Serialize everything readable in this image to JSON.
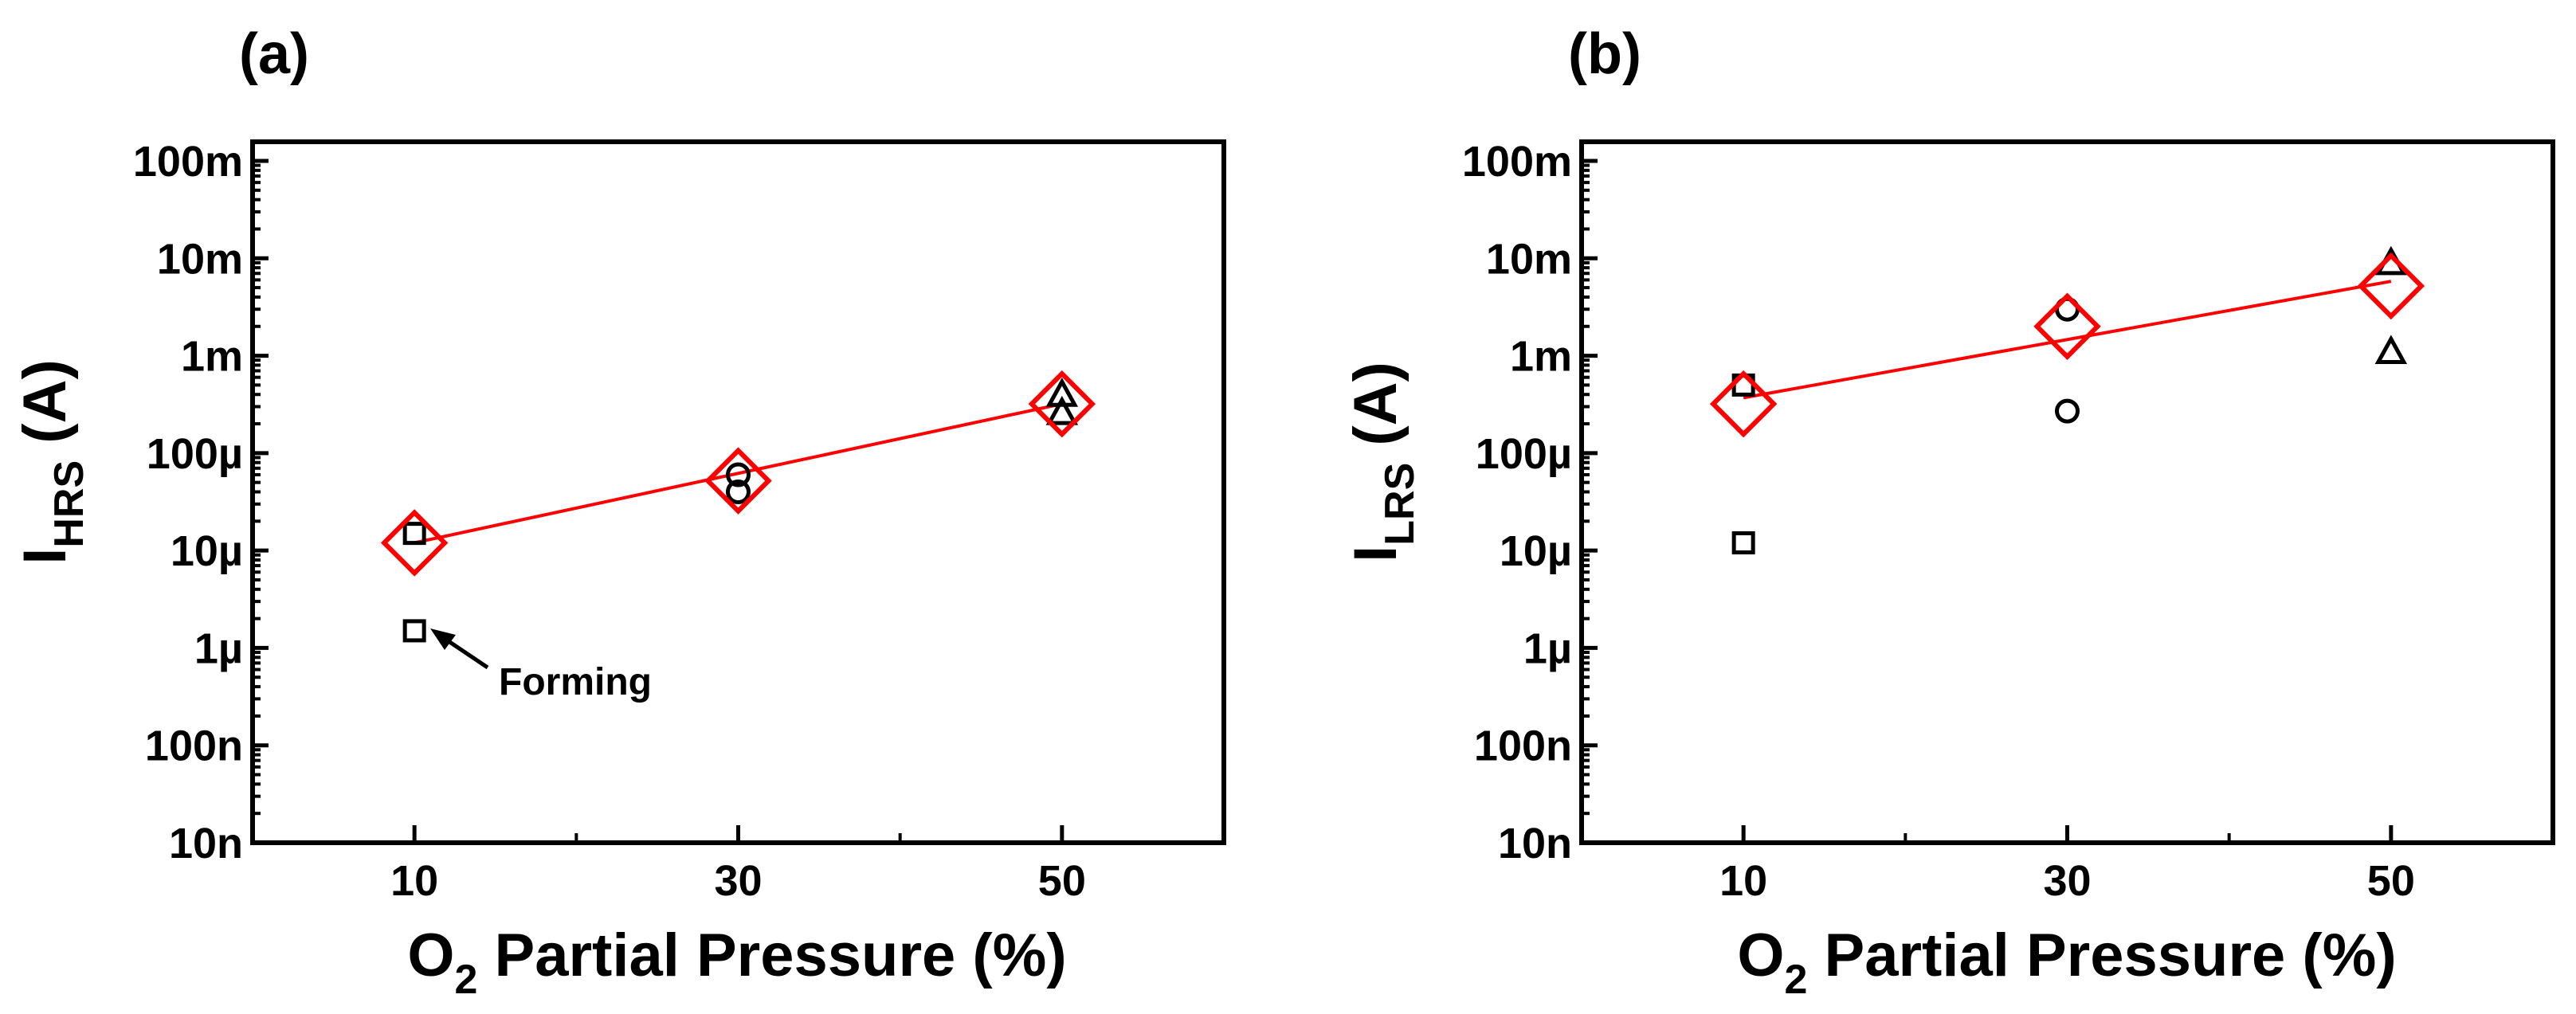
{
  "chart_data": [
    {
      "type": "scatter",
      "panel_label": "(a)",
      "xlabel": {
        "main": "O",
        "sub": "2",
        "rest": " Partial Pressure (%)"
      },
      "ylabel": {
        "main": "I",
        "sub": "HRS",
        "rest": " (A)"
      },
      "x_ticks": [
        10,
        30,
        50
      ],
      "x_range": [
        0,
        60
      ],
      "y_scale": "log",
      "y_range": [
        1e-08,
        0.1
      ],
      "y_ticks": [
        {
          "value": 0.1,
          "label": "100m"
        },
        {
          "value": 0.01,
          "label": "10m"
        },
        {
          "value": 0.001,
          "label": "1m"
        },
        {
          "value": 0.0001,
          "label": "100µ"
        },
        {
          "value": 1e-05,
          "label": "10µ"
        },
        {
          "value": 1e-06,
          "label": "1µ"
        },
        {
          "value": 1e-07,
          "label": "100n"
        },
        {
          "value": 1e-08,
          "label": "10n"
        }
      ],
      "series": [
        {
          "name": "square",
          "marker": "square",
          "color": "#000000",
          "points": [
            {
              "x": 10,
              "y": 1.5e-05
            },
            {
              "x": 10,
              "y": 1.5e-06
            }
          ]
        },
        {
          "name": "circle",
          "marker": "circle",
          "color": "#000000",
          "points": [
            {
              "x": 30,
              "y": 6e-05
            },
            {
              "x": 30,
              "y": 4e-05
            }
          ]
        },
        {
          "name": "triangle",
          "marker": "triangle",
          "color": "#000000",
          "points": [
            {
              "x": 50,
              "y": 0.0004
            },
            {
              "x": 50,
              "y": 0.00026
            }
          ]
        },
        {
          "name": "average",
          "marker": "diamond",
          "color": "#ff0000",
          "points": [
            {
              "x": 10,
              "y": 1.2e-05
            },
            {
              "x": 30,
              "y": 5.2e-05
            },
            {
              "x": 50,
              "y": 0.00032
            }
          ]
        }
      ],
      "fit_line": {
        "color": "#ff0000",
        "x": [
          10,
          50
        ],
        "y": [
          1.2e-05,
          0.00032
        ]
      },
      "annotations": [
        {
          "text": "Forming",
          "points_to": {
            "x": 10,
            "y": 1.5e-06
          }
        }
      ]
    },
    {
      "type": "scatter",
      "panel_label": "(b)",
      "xlabel": {
        "main": "O",
        "sub": "2",
        "rest": " Partial Pressure (%)"
      },
      "ylabel": {
        "main": "I",
        "sub": "LRS",
        "rest": " (A)"
      },
      "x_ticks": [
        10,
        30,
        50
      ],
      "x_range": [
        0,
        60
      ],
      "y_scale": "log",
      "y_range": [
        1e-08,
        0.1
      ],
      "y_ticks": [
        {
          "value": 0.1,
          "label": "100m"
        },
        {
          "value": 0.01,
          "label": "10m"
        },
        {
          "value": 0.001,
          "label": "1m"
        },
        {
          "value": 0.0001,
          "label": "100µ"
        },
        {
          "value": 1e-05,
          "label": "10µ"
        },
        {
          "value": 1e-06,
          "label": "1µ"
        },
        {
          "value": 1e-07,
          "label": "100n"
        },
        {
          "value": 1e-08,
          "label": "10n"
        }
      ],
      "series": [
        {
          "name": "square",
          "marker": "square",
          "color": "#000000",
          "points": [
            {
              "x": 10,
              "y": 0.0005
            },
            {
              "x": 10,
              "y": 1.2e-05
            }
          ]
        },
        {
          "name": "circle",
          "marker": "circle",
          "color": "#000000",
          "points": [
            {
              "x": 30,
              "y": 0.003
            },
            {
              "x": 30,
              "y": 0.00027
            }
          ]
        },
        {
          "name": "triangle",
          "marker": "triangle",
          "color": "#000000",
          "points": [
            {
              "x": 50,
              "y": 0.009
            },
            {
              "x": 50,
              "y": 0.0011
            }
          ]
        },
        {
          "name": "average",
          "marker": "diamond",
          "color": "#ff0000",
          "points": [
            {
              "x": 10,
              "y": 0.00032
            },
            {
              "x": 30,
              "y": 0.002
            },
            {
              "x": 50,
              "y": 0.0052
            }
          ]
        }
      ],
      "fit_line": {
        "color": "#ff0000",
        "x": [
          10,
          50
        ],
        "y": [
          0.00037,
          0.0058
        ]
      },
      "annotations": []
    }
  ]
}
